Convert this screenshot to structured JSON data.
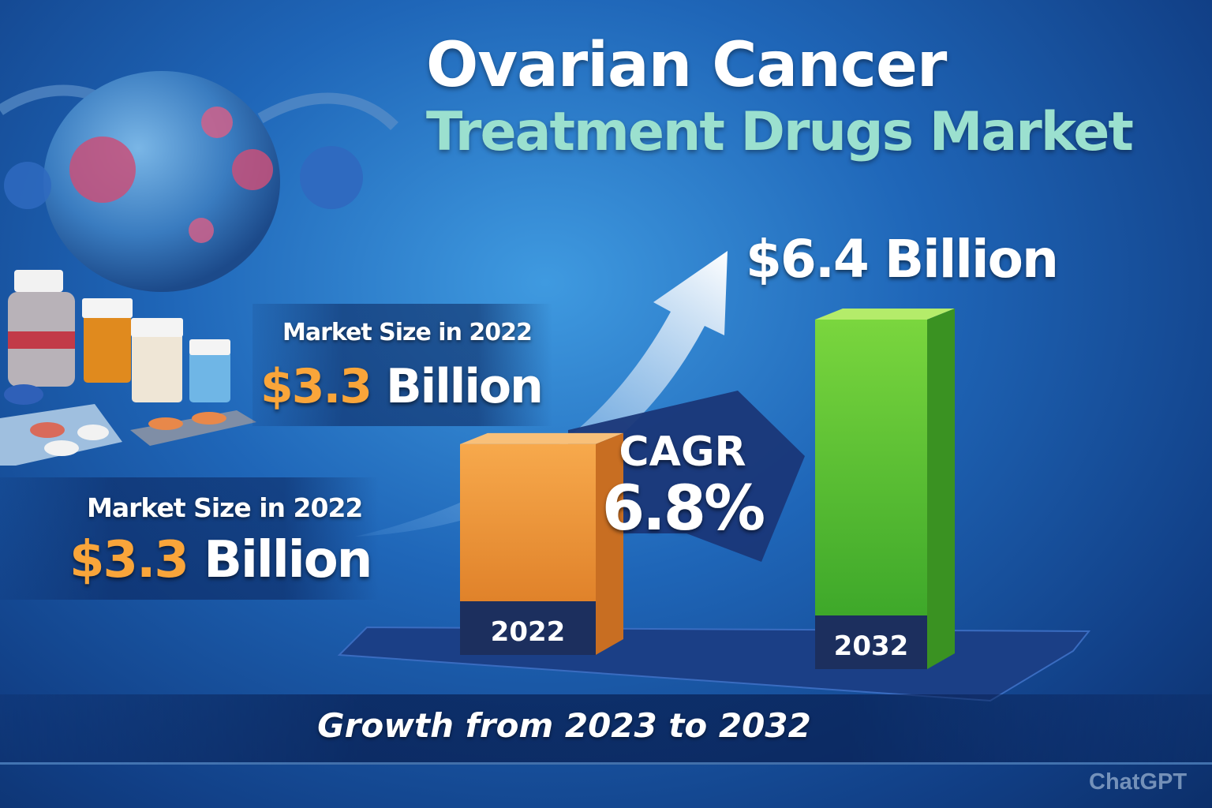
{
  "header": {
    "title": "Ovarian Cancer",
    "subtitle": "Treatment Drugs Market"
  },
  "callouts": [
    {
      "label": "Market Size in 2022",
      "currency_value": "$3.3",
      "unit": "Billion"
    },
    {
      "label": "Market Size in 2022",
      "currency_value": "$3.3",
      "unit": "Billion"
    }
  ],
  "forecast": {
    "currency_value": "$6.4",
    "unit": "Billion"
  },
  "cagr": {
    "label": "CAGR",
    "value": "6.8%"
  },
  "footer": {
    "text": "Growth from 2023 to 2032"
  },
  "watermark": "ChatGPT",
  "colors": {
    "bar_2022": "#f39a3c",
    "bar_2032": "#5cc43a",
    "accent_gold": "#f9a53a",
    "subtitle_teal": "#9be0cf",
    "platform": "#1b3f86"
  },
  "chart_data": {
    "type": "bar",
    "title": "Ovarian Cancer Treatment Drugs Market",
    "categories": [
      "2022",
      "2032"
    ],
    "values": [
      3.3,
      6.4
    ],
    "unit": "Billion USD",
    "cagr_percent": 6.8,
    "style": "3d",
    "grid": false
  }
}
